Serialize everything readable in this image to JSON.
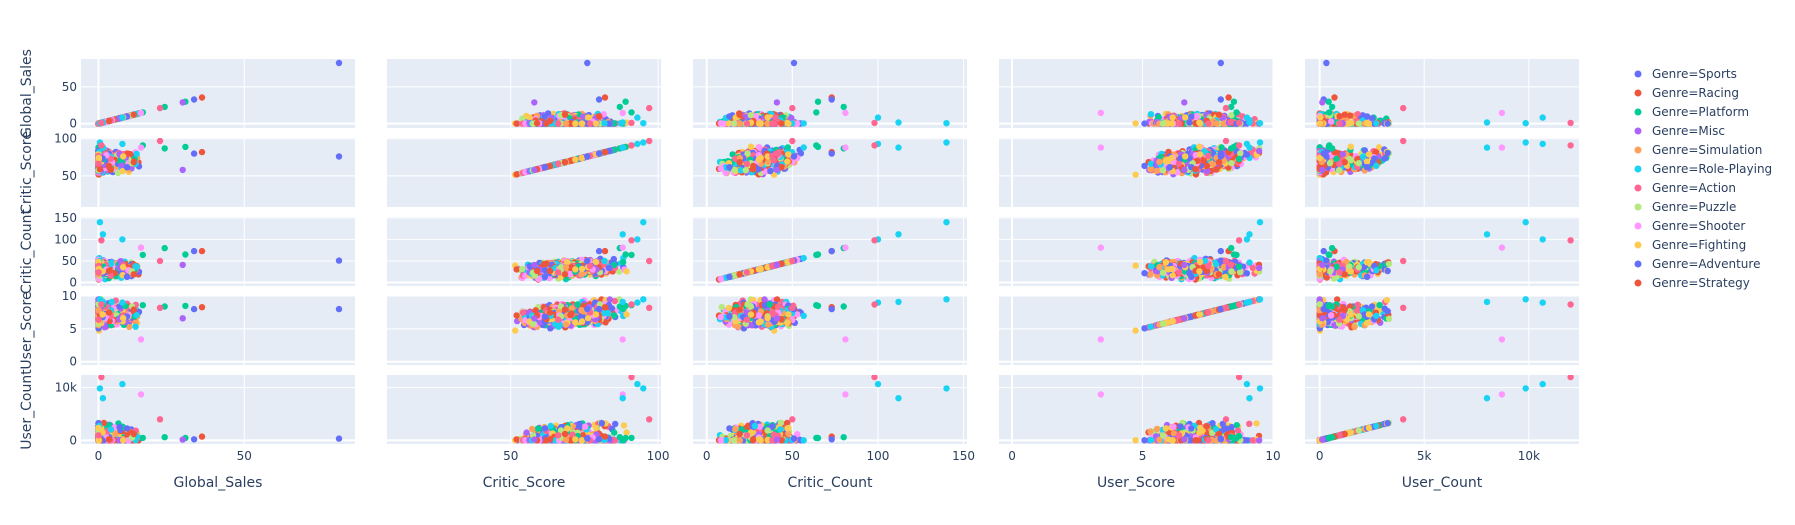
{
  "chart_data": {
    "type": "scatter",
    "subtype": "scatter-matrix",
    "dimensions": [
      "Global_Sales",
      "Critic_Score",
      "Critic_Count",
      "User_Score",
      "User_Count"
    ],
    "axes": {
      "Global_Sales": {
        "range": [
          -6,
          88
        ],
        "ticks": [
          {
            "v": 0,
            "label": "0"
          },
          {
            "v": 50,
            "label": "50"
          }
        ]
      },
      "Critic_Score": {
        "range": [
          8,
          101
        ],
        "ticks": [
          {
            "v": 50,
            "label": "50"
          },
          {
            "v": 100,
            "label": "100"
          }
        ]
      },
      "Critic_Count": {
        "range": [
          -8,
          152
        ],
        "ticks": [
          {
            "v": 0,
            "label": "0"
          },
          {
            "v": 50,
            "label": "50"
          },
          {
            "v": 100,
            "label": "100"
          },
          {
            "v": 150,
            "label": "150"
          }
        ]
      },
      "User_Score": {
        "range": [
          -0.5,
          10
        ],
        "ticks": [
          {
            "v": 0,
            "label": "0"
          },
          {
            "v": 5,
            "label": "5"
          },
          {
            "v": 10,
            "label": "10"
          }
        ]
      },
      "User_Count": {
        "range": [
          -700,
          12400
        ],
        "ticks": [
          {
            "v": 0,
            "label": "0"
          },
          {
            "v": 5000,
            "label": "5k"
          },
          {
            "v": 10000,
            "label": "10k"
          }
        ]
      }
    },
    "y_ticks": {
      "Global_Sales": [
        {
          "v": 0,
          "label": "0"
        },
        {
          "v": 50,
          "label": "50"
        }
      ],
      "Critic_Score": [
        {
          "v": 50,
          "label": "50"
        },
        {
          "v": 100,
          "label": "100"
        }
      ],
      "Critic_Count": [
        {
          "v": 0,
          "label": "0"
        },
        {
          "v": 50,
          "label": "50"
        },
        {
          "v": 100,
          "label": "100"
        },
        {
          "v": 150,
          "label": "150"
        }
      ],
      "User_Score": [
        {
          "v": 0,
          "label": "0"
        },
        {
          "v": 5,
          "label": "5"
        },
        {
          "v": 10,
          "label": "10"
        }
      ],
      "User_Count": [
        {
          "v": 0,
          "label": "0"
        },
        {
          "v": 10000,
          "label": "10k"
        }
      ]
    },
    "legend": {
      "placement": "right",
      "entries": [
        {
          "label": "Genre=Sports",
          "color": "#636efa"
        },
        {
          "label": "Genre=Racing",
          "color": "#EF553B"
        },
        {
          "label": "Genre=Platform",
          "color": "#00cc96"
        },
        {
          "label": "Genre=Misc",
          "color": "#ab63fa"
        },
        {
          "label": "Genre=Simulation",
          "color": "#FFA15A"
        },
        {
          "label": "Genre=Role-Playing",
          "color": "#19d3f3"
        },
        {
          "label": "Genre=Action",
          "color": "#FF6692"
        },
        {
          "label": "Genre=Puzzle",
          "color": "#B6E880"
        },
        {
          "label": "Genre=Shooter",
          "color": "#FF97FF"
        },
        {
          "label": "Genre=Fighting",
          "color": "#FECB52"
        },
        {
          "label": "Genre=Adventure",
          "color": "#636efa"
        },
        {
          "label": "Genre=Strategy",
          "color": "#EF553B"
        }
      ]
    },
    "grid": true,
    "plot_bg": "#E5ECF6",
    "notable_points": [
      {
        "Global_Sales": 82.5,
        "Critic_Score": 76,
        "Critic_Count": 51,
        "User_Score": 8.0,
        "User_Count": 322,
        "genre": "Genre=Sports"
      },
      {
        "Global_Sales": 35.5,
        "Critic_Score": 82,
        "Critic_Count": 73,
        "User_Score": 8.3,
        "User_Count": 709,
        "genre": "Genre=Racing"
      },
      {
        "Global_Sales": 32.8,
        "Critic_Score": 80,
        "Critic_Count": 73,
        "User_Score": 8.0,
        "User_Count": 192,
        "genre": "Genre=Sports"
      },
      {
        "Global_Sales": 29.8,
        "Critic_Score": 89,
        "Critic_Count": 65,
        "User_Score": 8.5,
        "User_Count": 431,
        "genre": "Genre=Platform"
      },
      {
        "Global_Sales": 28.9,
        "Critic_Score": 58,
        "Critic_Count": 41,
        "User_Score": 6.6,
        "User_Count": 129,
        "genre": "Genre=Misc"
      },
      {
        "Global_Sales": 22.7,
        "Critic_Score": 87,
        "Critic_Count": 80,
        "User_Score": 8.4,
        "User_Count": 594,
        "genre": "Genre=Platform"
      },
      {
        "Global_Sales": 21.1,
        "Critic_Score": 97,
        "Critic_Count": 50,
        "User_Score": 8.2,
        "User_Count": 3994,
        "genre": "Genre=Action"
      },
      {
        "Global_Sales": 15.2,
        "Critic_Score": 91,
        "Critic_Count": 64,
        "User_Score": 8.6,
        "User_Count": 464,
        "genre": "Genre=Platform"
      },
      {
        "Global_Sales": 14.6,
        "Critic_Score": 88,
        "Critic_Count": 81,
        "User_Score": 3.4,
        "User_Count": 8713,
        "genre": "Genre=Shooter"
      },
      {
        "Global_Sales": 8.2,
        "Critic_Score": 93,
        "Critic_Count": 100,
        "User_Score": 9.0,
        "User_Count": 10665,
        "genre": "Genre=Role-Playing"
      },
      {
        "Global_Sales": 0.5,
        "Critic_Score": 95,
        "Critic_Count": 140,
        "User_Score": 9.5,
        "User_Count": 9851,
        "genre": "Genre=Role-Playing"
      },
      {
        "Global_Sales": 1.5,
        "Critic_Score": 88,
        "Critic_Count": 112,
        "User_Score": 9.1,
        "User_Count": 8000,
        "genre": "Genre=Role-Playing"
      },
      {
        "Global_Sales": 1.0,
        "Critic_Score": 91,
        "Critic_Count": 98,
        "User_Score": 8.7,
        "User_Count": 12000,
        "genre": "Genre=Action"
      }
    ]
  }
}
